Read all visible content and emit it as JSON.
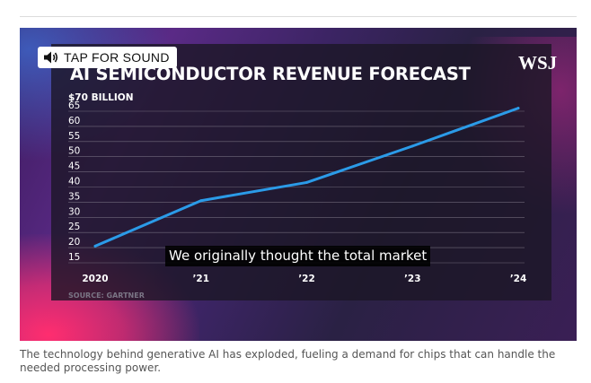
{
  "sound_button": {
    "label": "TAP FOR SOUND",
    "icon": "speaker-icon"
  },
  "logo": {
    "text": "WSJ"
  },
  "subtitle": "We originally thought the total market",
  "caption": "The technology behind generative AI has exploded, fueling a demand for chips that can handle the needed processing power.",
  "colors": {
    "line": "#2b9be8",
    "grid": "#8a8492",
    "text": "#ffffff",
    "source": "#7a7585"
  },
  "chart_data": {
    "type": "line",
    "title": "AI SEMICONDUCTOR REVENUE FORECAST",
    "ylabel": "$70 BILLION",
    "source": "SOURCE: GARTNER",
    "x": [
      2020,
      2021,
      2022,
      2023,
      2024
    ],
    "xtick_labels": [
      "2020",
      "’21",
      "’22",
      "’23",
      "’24"
    ],
    "yticks": [
      15,
      20,
      25,
      30,
      35,
      40,
      45,
      50,
      55,
      60,
      65
    ],
    "ylim": [
      15,
      70
    ],
    "series": [
      {
        "name": "Revenue",
        "values": [
          20.5,
          35.5,
          41.5,
          53.5,
          66
        ]
      }
    ]
  }
}
